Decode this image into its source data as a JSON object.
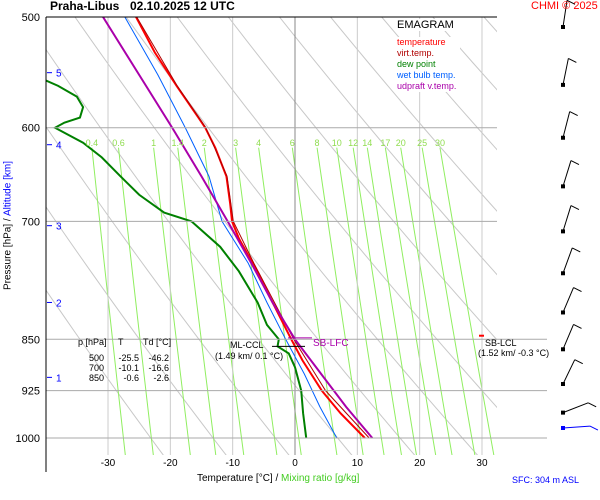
{
  "header": {
    "station": "Praha-Libus",
    "datetime": "02.10.2025 12 UTC",
    "credit": "CHMI © 2025"
  },
  "footer": {
    "sfc": "SFC: 304 m ASL"
  },
  "table": {
    "headers": [
      "p [hPa]",
      "T",
      "Td [°C]"
    ],
    "rows": [
      [
        "500",
        "-25.5",
        "-46.2"
      ],
      [
        "700",
        "-10.1",
        "-16.6"
      ],
      [
        "850",
        "-0.6",
        "-2.6"
      ]
    ]
  },
  "annotations": {
    "ml_ccl": "ML-CCL",
    "ml_ccl_info": "(1.49 km/ 0.1 °C)",
    "sb_lfc": "SB-LFC",
    "sb_lcl": "SB-LCL",
    "sb_lcl_info": "(1.52 km/ -0.3 °C)"
  },
  "colors": {
    "temperature": "#ff0000",
    "virt_temp": "#b00000",
    "dew_point": "#008000",
    "wet_bulb": "#0060ff",
    "updraft": "#aa00aa",
    "mixing": "#90ee60",
    "adiabat": "#c8c8c8",
    "altitude": "#0000ff"
  },
  "chart_data": {
    "type": "line",
    "title": "EMAGRAM",
    "xlabel": "Temperature [°C]",
    "xlabel2": "Mixing ratio [g/kg]",
    "ylabel": "Pressure [hPa]",
    "ylabel2": "Altitude [km]",
    "xlim": [
      -40,
      32
    ],
    "ylim": [
      1028,
      500
    ],
    "yscale": "log",
    "xticks": [
      -30,
      -20,
      -10,
      0,
      10,
      20,
      30
    ],
    "yticks": [
      500,
      600,
      700,
      850,
      925,
      1000
    ],
    "altitude_ticks": [
      {
        "km": 1,
        "p": 905
      },
      {
        "km": 2,
        "p": 800
      },
      {
        "km": 3,
        "p": 705
      },
      {
        "km": 4,
        "p": 617
      },
      {
        "km": 5,
        "p": 548
      }
    ],
    "mixing_ratio_labels": [
      0.4,
      0.6,
      1,
      1.4,
      2,
      3,
      4,
      6,
      8,
      10,
      12,
      14,
      17,
      20,
      25,
      30
    ],
    "legend_placement": "top-right",
    "series": [
      {
        "name": "temperature",
        "p": [
          500,
          530,
          560,
          590,
          600,
          620,
          650,
          680,
          700,
          720,
          750,
          800,
          850,
          880,
          925,
          960,
          1000
        ],
        "t": [
          -25.5,
          -22.5,
          -19,
          -15.5,
          -14.4,
          -12.8,
          -11,
          -10.4,
          -10.1,
          -9,
          -6.8,
          -3.6,
          -0.6,
          1.2,
          4.3,
          7.3,
          11.2
        ]
      },
      {
        "name": "virt.temp.",
        "p": [
          500,
          560,
          600,
          650,
          700,
          750,
          800,
          850,
          925,
          1000
        ],
        "t": [
          -25.4,
          -18.9,
          -14.3,
          -10.9,
          -9.9,
          -6.6,
          -3.3,
          -0.2,
          4.9,
          11.9
        ]
      },
      {
        "name": "dew point",
        "p": [
          555,
          560,
          570,
          580,
          590,
          595,
          600,
          605,
          615,
          630,
          650,
          670,
          690,
          700,
          730,
          760,
          800,
          830,
          850,
          860,
          870,
          890,
          925,
          960,
          1000
        ],
        "t": [
          -40,
          -38,
          -35,
          -34,
          -34.5,
          -37,
          -38.5,
          -37,
          -34,
          -31,
          -28,
          -25,
          -21,
          -16.6,
          -12,
          -9,
          -6,
          -4.5,
          -2.6,
          -2.8,
          -1,
          0,
          1,
          1.3,
          1.8
        ]
      },
      {
        "name": "wet bulb temp.",
        "p": [
          500,
          550,
          600,
          650,
          700,
          750,
          800,
          850,
          900,
          950,
          1000
        ],
        "t": [
          -27.3,
          -22,
          -17.6,
          -13.8,
          -11.7,
          -7.5,
          -4.5,
          -1.5,
          1.5,
          4,
          6.7
        ]
      },
      {
        "name": "udpraft v.temp.",
        "p": [
          500,
          550,
          600,
          650,
          700,
          750,
          800,
          850,
          900,
          950,
          1000
        ],
        "t": [
          -30.8,
          -25,
          -19.7,
          -15,
          -10.8,
          -7,
          -3.6,
          0,
          4.2,
          8.2,
          12.4
        ]
      }
    ]
  }
}
